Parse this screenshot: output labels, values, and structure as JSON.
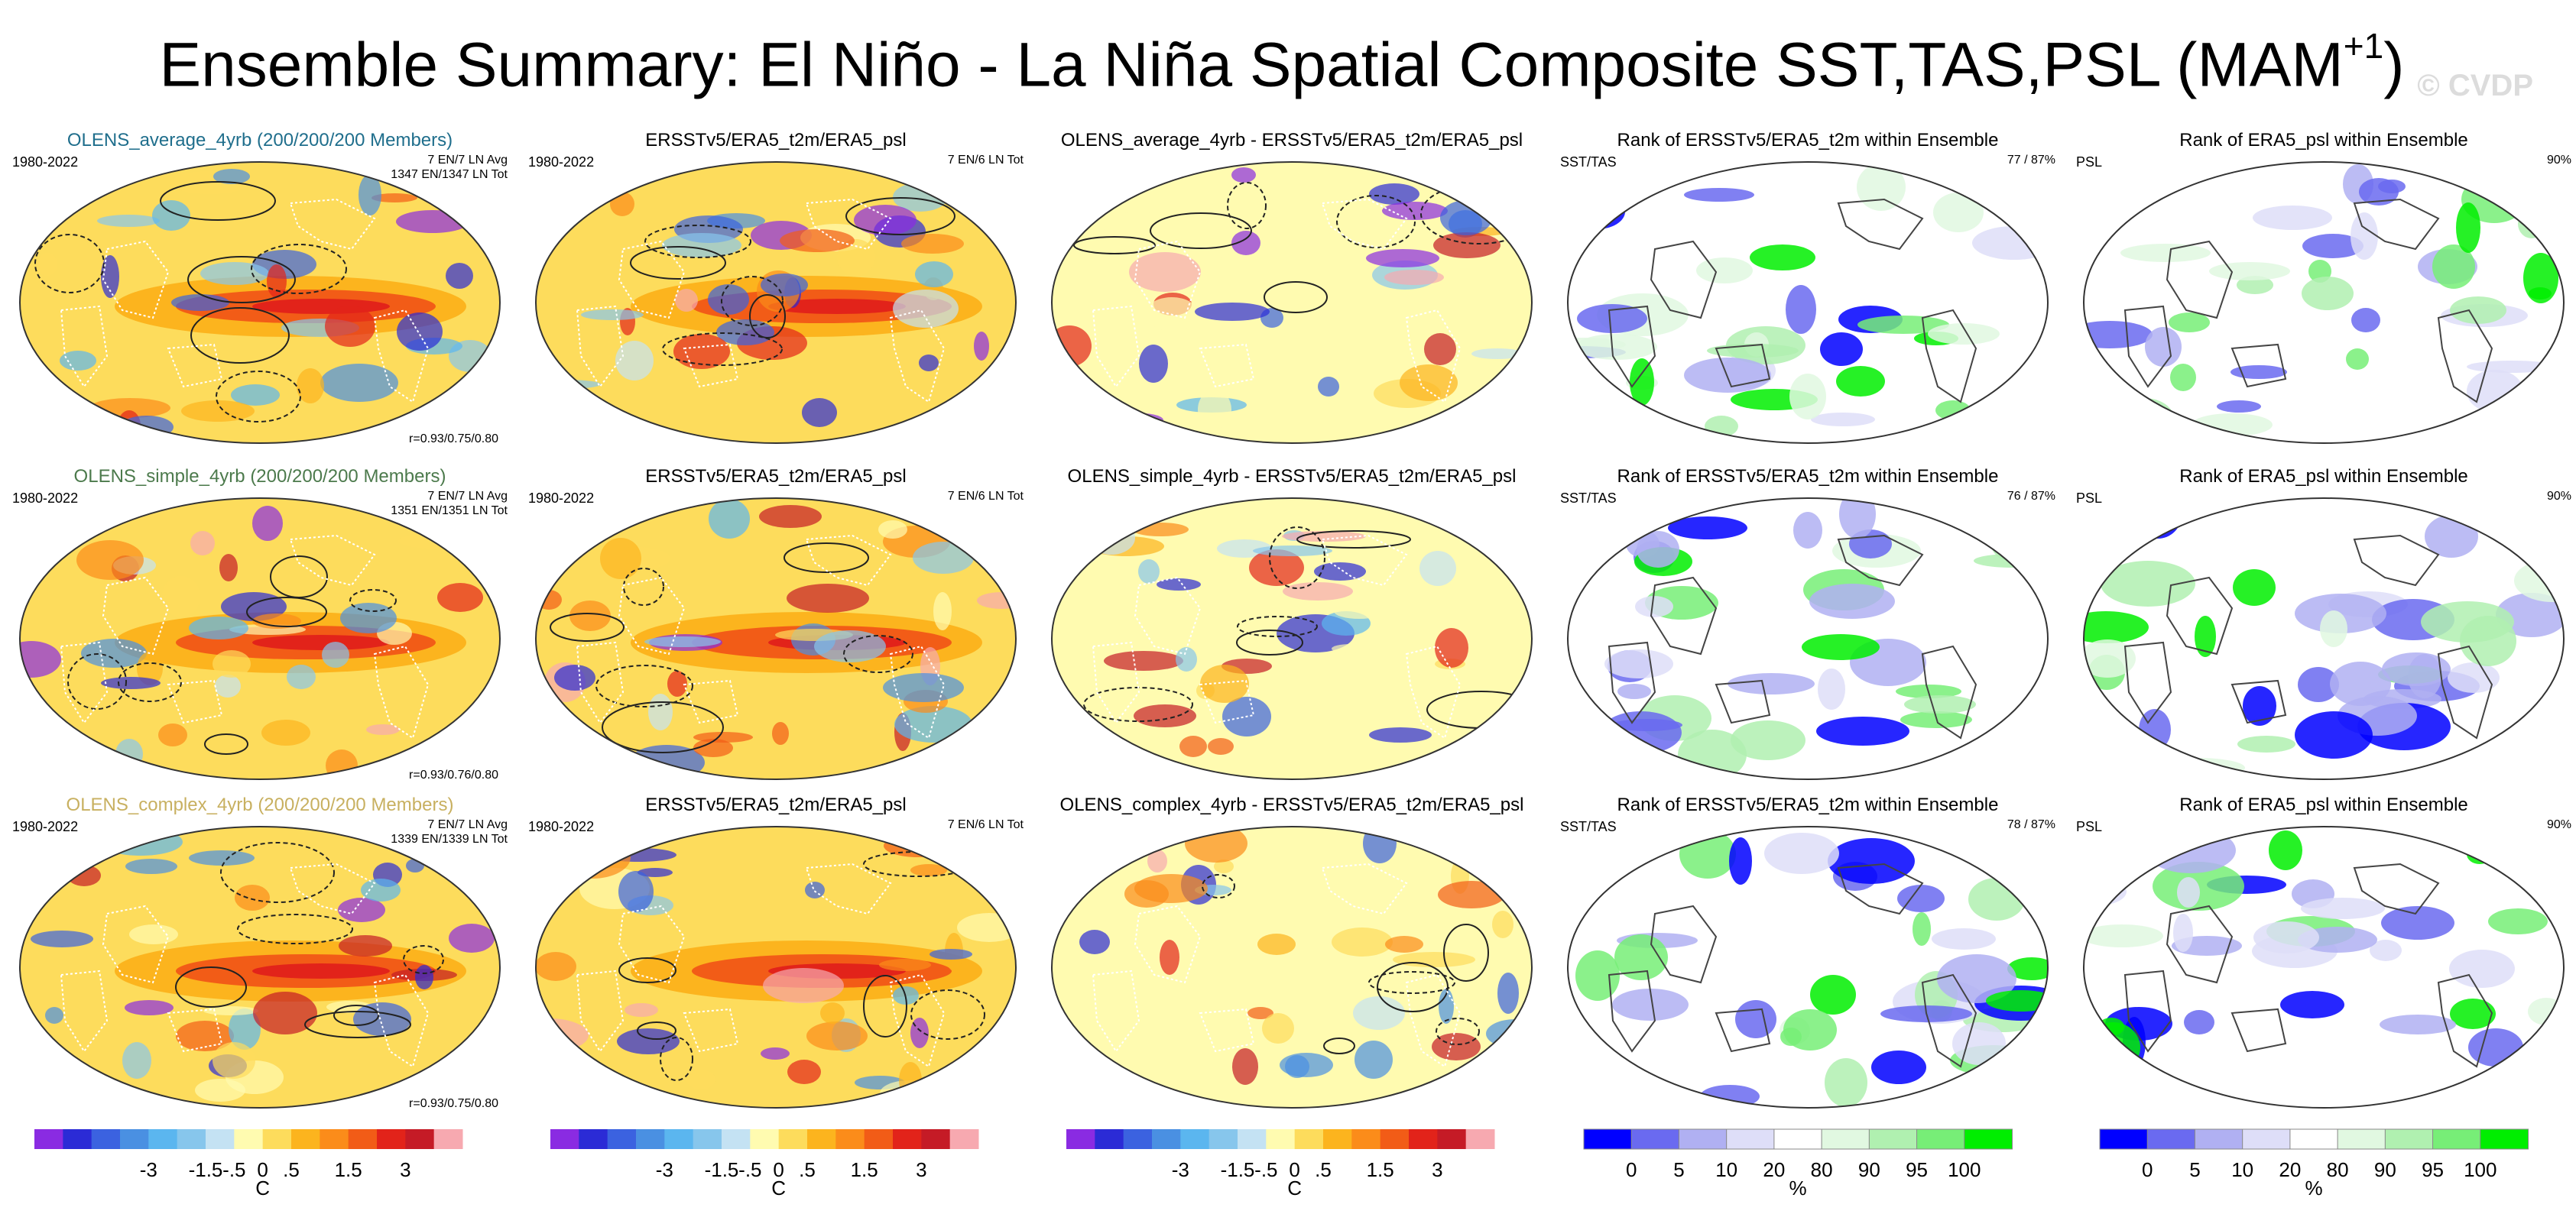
{
  "title": {
    "main": "Ensemble Summary: El Niño - La Niña Spatial Composite SST,TAS,PSL (MAM",
    "superscript": "+1",
    "close": ")",
    "watermark": "© CVDP"
  },
  "colors": {
    "title_average": "#1f6e8c",
    "title_simple": "#4c7a4c",
    "title_complex": "#c8b060",
    "land_contour": "#ffffff"
  },
  "rows": [
    {
      "panels": [
        {
          "title": "OLENS_average_4yrb (200/200/200 Members)",
          "title_color": "#1f6e8c",
          "left": "1980-2022",
          "right": [
            "7 EN/7 LN Avg",
            "1347 EN/1347 LN Tot"
          ],
          "corr": "r=0.93/0.75/0.80",
          "kind": "composite"
        },
        {
          "title": "ERSSTv5/ERA5_t2m/ERA5_psl",
          "left": "1980-2022",
          "right": [
            "7 EN/6 LN Tot"
          ],
          "kind": "composite"
        },
        {
          "title": "OLENS_average_4yrb - ERSSTv5/ERA5_t2m/ERA5_psl",
          "kind": "difference"
        },
        {
          "title": "Rank of ERSSTv5/ERA5_t2m within Ensemble",
          "left": "SST/TAS",
          "right": [
            "77 /  87%"
          ],
          "kind": "rank"
        },
        {
          "title": "Rank of ERA5_psl within Ensemble",
          "left": "PSL",
          "right": [
            "90%"
          ],
          "kind": "rank"
        }
      ]
    },
    {
      "panels": [
        {
          "title": "OLENS_simple_4yrb (200/200/200 Members)",
          "title_color": "#4c7a4c",
          "left": "1980-2022",
          "right": [
            "7 EN/7 LN Avg",
            "1351 EN/1351 LN Tot"
          ],
          "corr": "r=0.93/0.76/0.80",
          "kind": "composite"
        },
        {
          "title": "ERSSTv5/ERA5_t2m/ERA5_psl",
          "left": "1980-2022",
          "right": [
            "7 EN/6 LN Tot"
          ],
          "kind": "composite"
        },
        {
          "title": "OLENS_simple_4yrb - ERSSTv5/ERA5_t2m/ERA5_psl",
          "kind": "difference"
        },
        {
          "title": "Rank of ERSSTv5/ERA5_t2m within Ensemble",
          "left": "SST/TAS",
          "right": [
            "76 /  87%"
          ],
          "kind": "rank"
        },
        {
          "title": "Rank of ERA5_psl within Ensemble",
          "left": "PSL",
          "right": [
            "90%"
          ],
          "kind": "rank"
        }
      ]
    },
    {
      "panels": [
        {
          "title": "OLENS_complex_4yrb (200/200/200 Members)",
          "title_color": "#c8b060",
          "left": "1980-2022",
          "right": [
            "7 EN/7 LN Avg",
            "1339 EN/1339 LN Tot"
          ],
          "corr": "r=0.93/0.75/0.80",
          "kind": "composite"
        },
        {
          "title": "ERSSTv5/ERA5_t2m/ERA5_psl",
          "left": "1980-2022",
          "right": [
            "7 EN/6 LN Tot"
          ],
          "kind": "composite"
        },
        {
          "title": "OLENS_complex_4yrb - ERSSTv5/ERA5_t2m/ERA5_psl",
          "kind": "difference"
        },
        {
          "title": "Rank of ERSSTv5/ERA5_t2m within Ensemble",
          "left": "SST/TAS",
          "right": [
            "78 /  87%"
          ],
          "kind": "rank"
        },
        {
          "title": "Rank of ERA5_psl within Ensemble",
          "left": "PSL",
          "right": [
            "90%"
          ],
          "kind": "rank"
        }
      ]
    }
  ],
  "chart_data": [
    {
      "type": "heatmap",
      "name": "temperature colorbar",
      "unit": "C",
      "tick_labels": [
        "-3",
        "-1.5",
        "-.5",
        "0",
        ".5",
        "1.5",
        "3"
      ],
      "colors": [
        "#8a2be2",
        "#2b2bd6",
        "#3b62e0",
        "#4a90e2",
        "#5bb6ef",
        "#87c6ec",
        "#c4e2f3",
        "#fffbb0",
        "#fddc5c",
        "#fcb41e",
        "#fb8c1a",
        "#f25c17",
        "#e2231a",
        "#c51b26",
        "#f7a9b0"
      ]
    },
    {
      "type": "heatmap",
      "name": "rank colorbar",
      "unit": "%",
      "tick_labels": [
        "0",
        "5",
        "10",
        "20",
        "80",
        "90",
        "95",
        "100"
      ],
      "colors": [
        "#0000ff",
        "#6a6af0",
        "#b0b0f2",
        "#dedef8",
        "#ffffff",
        "#e1f8e1",
        "#b0f0b0",
        "#77ee77",
        "#00ee00"
      ]
    }
  ]
}
